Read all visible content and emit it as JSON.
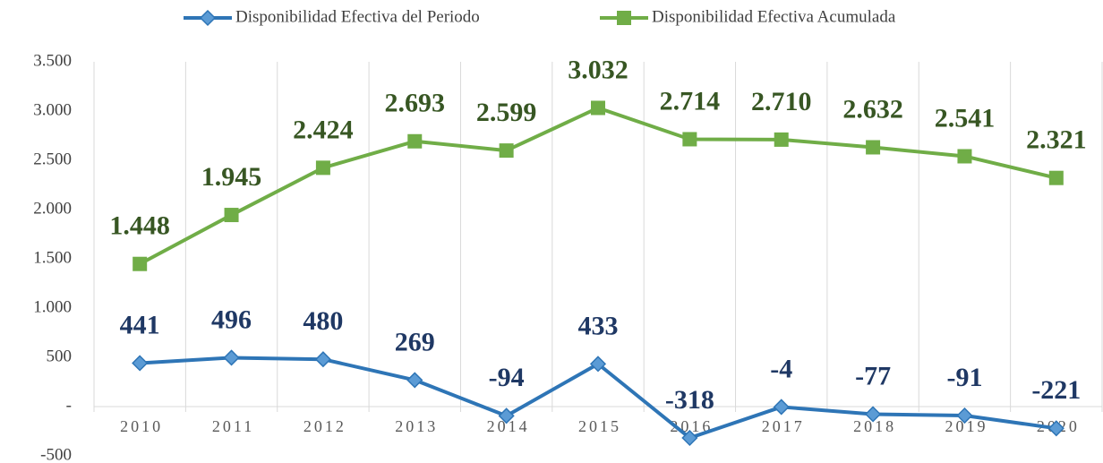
{
  "chart_data": {
    "type": "line",
    "categories": [
      "2010",
      "2011",
      "2012",
      "2013",
      "2014",
      "2015",
      "2016",
      "2017",
      "2018",
      "2019",
      "2020"
    ],
    "series": [
      {
        "name": "Disponibilidad Efectiva del Periodo",
        "color": "#2e75b6",
        "label_color": "#1f3864",
        "marker": "diamond",
        "values": [
          441,
          496,
          480,
          269,
          -94,
          433,
          -318,
          -4,
          -77,
          -91,
          -221
        ]
      },
      {
        "name": "Disponibilidad Efectiva Acumulada",
        "color": "#70ad47",
        "label_color": "#375623",
        "marker": "square",
        "values": [
          1448,
          1945,
          2424,
          2693,
          2599,
          3032,
          2714,
          2710,
          2632,
          2541,
          2321
        ],
        "value_labels": [
          "1.448",
          "1.945",
          "2.424",
          "2.693",
          "2.599",
          "3.032",
          "2.714",
          "2.710",
          "2.632",
          "2.541",
          "2.321"
        ]
      }
    ],
    "ylim": [
      -500,
      3500
    ],
    "yticks": [
      {
        "value": -500,
        "label": "-500"
      },
      {
        "value": 0,
        "label": "-"
      },
      500,
      {
        "value": 1000,
        "label": "1.000"
      },
      {
        "value": 1500,
        "label": "1.500"
      },
      {
        "value": 2000,
        "label": "2.000"
      },
      {
        "value": 2500,
        "label": "2.500"
      },
      {
        "value": 3000,
        "label": "3.000"
      },
      {
        "value": 3500,
        "label": "3.500"
      }
    ],
    "legend": "top",
    "grid": "vertical"
  }
}
